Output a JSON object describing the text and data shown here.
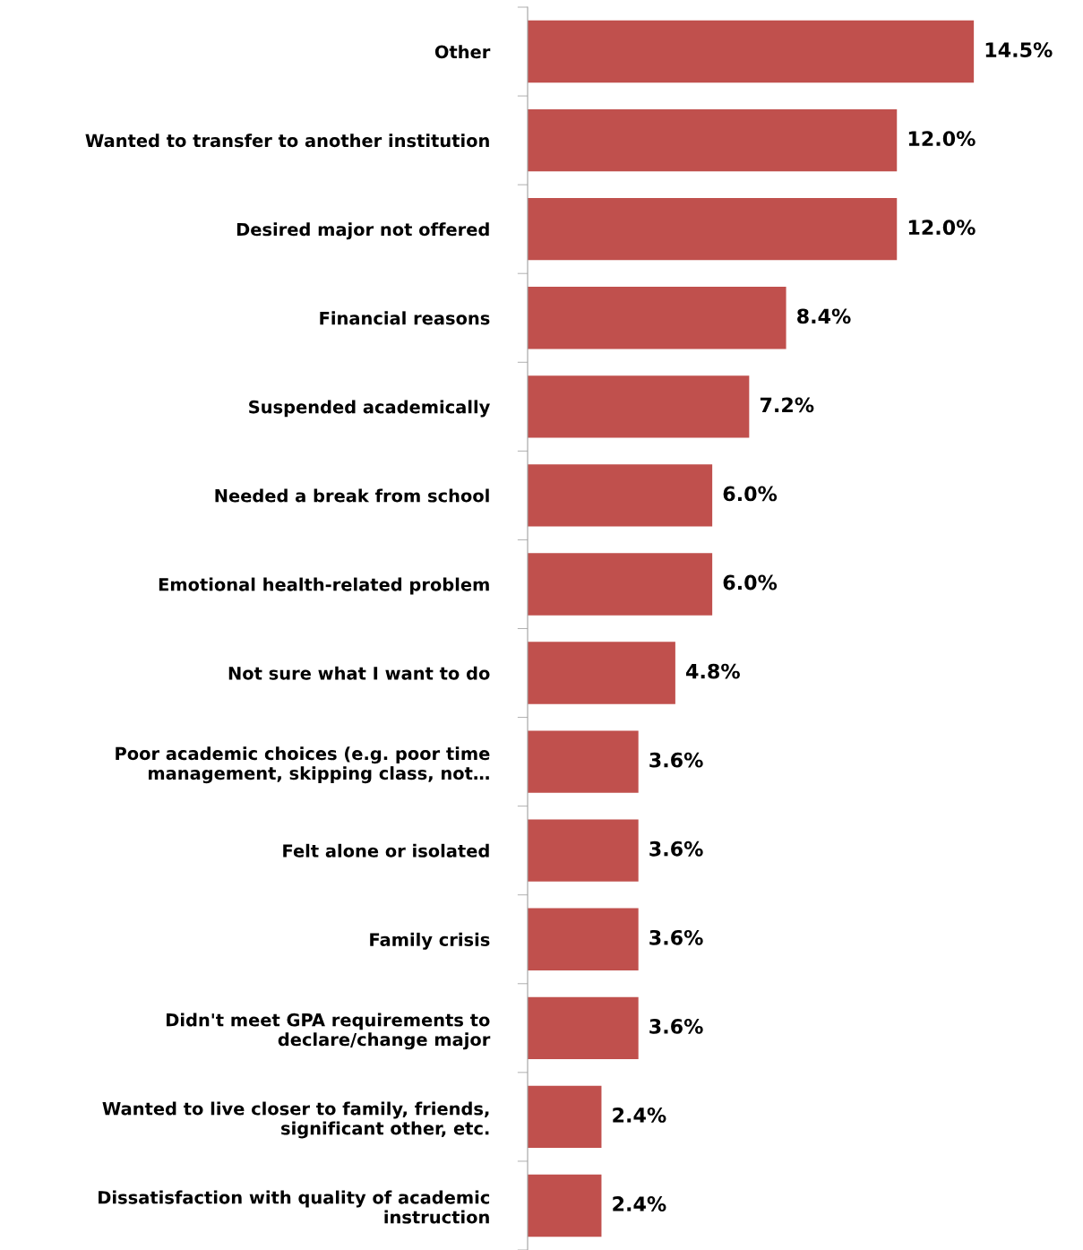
{
  "chart_data": {
    "type": "bar",
    "orientation": "horizontal",
    "categories": [
      "Other",
      "Wanted to transfer to another institution",
      "Desired major not offered",
      "Financial reasons",
      "Suspended academically",
      "Needed a break from school",
      "Emotional health-related problem",
      "Not sure what I want to do",
      "Poor academic choices (e.g. poor time\nmanagement, skipping class, not…",
      "Felt alone or isolated",
      "Family crisis",
      "Didn't meet GPA requirements to\ndeclare/change major",
      "Wanted to live closer to family, friends,\nsignificant other, etc.",
      "Dissatisfaction with quality of academic\ninstruction"
    ],
    "values": [
      14.5,
      12.0,
      12.0,
      8.4,
      7.2,
      6.0,
      6.0,
      4.8,
      3.6,
      3.6,
      3.6,
      3.6,
      2.4,
      2.4
    ],
    "value_labels": [
      "14.5%",
      "12.0%",
      "12.0%",
      "8.4%",
      "7.2%",
      "6.0%",
      "6.0%",
      "4.8%",
      "3.6%",
      "3.6%",
      "3.6%",
      "3.6%",
      "2.4%",
      "2.4%"
    ],
    "color": "#c0504d",
    "tick_labels": "y",
    "grid": false,
    "legend": false
  }
}
